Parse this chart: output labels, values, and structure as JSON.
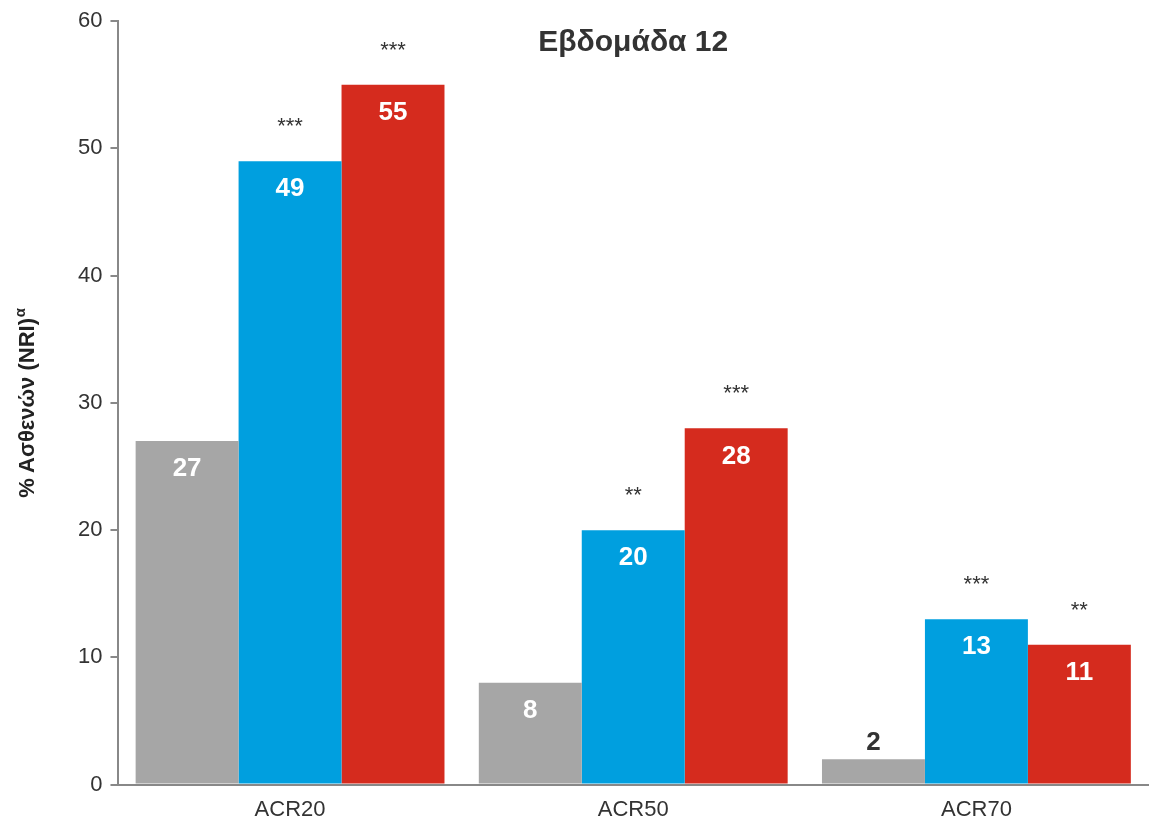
{
  "chart_data": {
    "type": "bar",
    "title": "Εβδομάδα 12",
    "ylabel": "% Ασθενών (NRI)$^{α}$",
    "categories": [
      "ACR20",
      "ACR50",
      "ACR70"
    ],
    "series": [
      {
        "color": "#a6a6a6",
        "values": [
          27,
          8,
          2
        ]
      },
      {
        "color": "#009fdf",
        "values": [
          49,
          20,
          13
        ]
      },
      {
        "color": "#d52b1e",
        "values": [
          55,
          28,
          11
        ]
      }
    ],
    "ylim": [
      0,
      60
    ],
    "yticks": [
      0,
      10,
      20,
      30,
      40,
      50,
      60
    ],
    "grid": false,
    "legend": false,
    "data_labels": true,
    "annotations": [
      "***",
      "***",
      "**",
      "***",
      "***",
      "**"
    ]
  }
}
